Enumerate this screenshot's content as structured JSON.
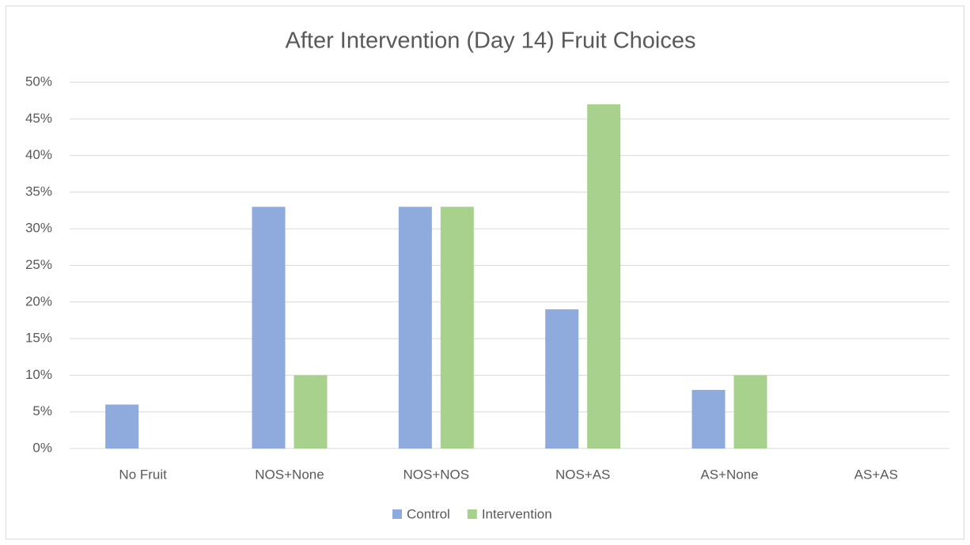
{
  "chart_data": {
    "type": "bar",
    "title": "After Intervention (Day 14) Fruit Choices",
    "categories": [
      "No Fruit",
      "NOS+None",
      "NOS+NOS",
      "NOS+AS",
      "AS+None",
      "AS+AS"
    ],
    "series": [
      {
        "name": "Control",
        "color": "#8faadc",
        "values": [
          6,
          33,
          33,
          19,
          8,
          0
        ]
      },
      {
        "name": "Intervention",
        "color": "#a9d18e",
        "values": [
          0,
          10,
          33,
          47,
          10,
          0
        ]
      }
    ],
    "ylim": [
      0,
      50
    ],
    "yticks": [
      {
        "value": 0,
        "label": "0%"
      },
      {
        "value": 5,
        "label": "5%"
      },
      {
        "value": 10,
        "label": "10%"
      },
      {
        "value": 15,
        "label": "15%"
      },
      {
        "value": 20,
        "label": "20%"
      },
      {
        "value": 25,
        "label": "25%"
      },
      {
        "value": 30,
        "label": "30%"
      },
      {
        "value": 35,
        "label": "35%"
      },
      {
        "value": 40,
        "label": "40%"
      },
      {
        "value": 45,
        "label": "45%"
      },
      {
        "value": 50,
        "label": "50%"
      }
    ],
    "grid": true,
    "legend": "bottom"
  }
}
